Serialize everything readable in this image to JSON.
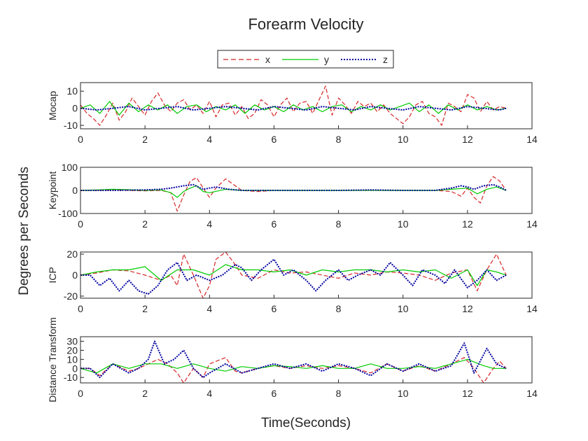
{
  "title": "Forearm Velocity",
  "xlabel": "Time(Seconds)",
  "ylabel": "Degrees per Seconds",
  "legend": {
    "placement": "top-center",
    "entries": [
      {
        "name": "x",
        "color": "#d62728",
        "style": "dashed"
      },
      {
        "name": "y",
        "color": "#00cc00",
        "style": "solid"
      },
      {
        "name": "z",
        "color": "#0000a0",
        "style": "dotted"
      }
    ]
  },
  "chart_data": [
    {
      "type": "line",
      "ylabel": "Mocap",
      "xlim": [
        0,
        14
      ],
      "ylim": [
        -12,
        15
      ],
      "xticks": [
        0,
        2,
        4,
        6,
        8,
        10,
        12,
        14
      ],
      "yticks": [
        -10,
        0,
        10
      ],
      "grid": false,
      "series": [
        {
          "name": "x",
          "x": [
            0,
            0.2,
            0.4,
            0.6,
            0.8,
            1.0,
            1.2,
            1.4,
            1.6,
            1.8,
            2.0,
            2.2,
            2.4,
            2.6,
            2.8,
            3.0,
            3.2,
            3.4,
            3.6,
            3.8,
            4.0,
            4.2,
            4.4,
            4.6,
            4.8,
            5.0,
            5.2,
            5.4,
            5.6,
            5.8,
            6.0,
            6.2,
            6.4,
            6.6,
            6.8,
            7.0,
            7.2,
            7.4,
            7.6,
            7.8,
            8.0,
            8.2,
            8.4,
            8.6,
            8.8,
            9.0,
            9.2,
            9.4,
            9.6,
            9.8,
            10.0,
            10.2,
            10.4,
            10.6,
            10.8,
            11.0,
            11.2,
            11.4,
            11.6,
            11.8,
            12.0,
            12.2,
            12.4,
            12.6,
            12.8,
            13.0,
            13.2
          ],
          "y": [
            2,
            -3,
            -6,
            -10,
            -4,
            3,
            -7,
            -2,
            6,
            1,
            -4,
            4,
            9,
            2,
            -2,
            3,
            5,
            -1,
            2,
            -3,
            4,
            -5,
            2,
            3,
            -4,
            1,
            -6,
            -3,
            5,
            2,
            -5,
            2,
            6,
            -2,
            3,
            4,
            -3,
            5,
            13,
            -4,
            6,
            2,
            -3,
            4,
            1,
            3,
            -2,
            2,
            -3,
            -6,
            -9,
            -5,
            2,
            4,
            -3,
            -5,
            -10,
            3,
            1,
            -2,
            8,
            6,
            -2,
            4,
            -1,
            1,
            0
          ]
        },
        {
          "name": "y",
          "x": [
            0,
            0.3,
            0.6,
            0.9,
            1.2,
            1.5,
            1.8,
            2.1,
            2.4,
            2.7,
            3.0,
            3.3,
            3.6,
            3.9,
            4.2,
            4.5,
            4.8,
            5.1,
            5.4,
            5.7,
            6.0,
            6.3,
            6.6,
            6.9,
            7.2,
            7.5,
            7.8,
            8.1,
            8.4,
            8.7,
            9.0,
            9.3,
            9.6,
            9.9,
            10.2,
            10.5,
            10.8,
            11.1,
            11.4,
            11.7,
            12.0,
            12.3,
            12.6,
            12.9,
            13.2
          ],
          "y": [
            0,
            2,
            -3,
            4,
            -4,
            3,
            -2,
            2,
            -1,
            2,
            -3,
            1,
            2,
            -2,
            1,
            -1,
            2,
            -3,
            2,
            -1,
            1,
            -2,
            2,
            -1,
            1,
            -2,
            1,
            2,
            -2,
            1,
            -1,
            2,
            -1,
            1,
            3,
            -2,
            2,
            -3,
            2,
            -1,
            2,
            -1,
            1,
            -1,
            0
          ]
        },
        {
          "name": "z",
          "x": [
            0,
            0.5,
            1.0,
            1.5,
            2.0,
            2.5,
            3.0,
            3.5,
            4.0,
            4.5,
            5.0,
            5.5,
            6.0,
            6.5,
            7.0,
            7.5,
            8.0,
            8.5,
            9.0,
            9.5,
            10.0,
            10.5,
            11.0,
            11.5,
            12.0,
            12.5,
            13.0,
            13.2
          ],
          "y": [
            0,
            -1,
            0,
            1,
            -1,
            0,
            1,
            -1,
            0,
            1,
            0,
            -1,
            1,
            0,
            -1,
            1,
            0,
            -1,
            1,
            0,
            -1,
            1,
            0,
            -1,
            1,
            0,
            -1,
            0
          ]
        }
      ]
    },
    {
      "type": "line",
      "ylabel": "Keypoint",
      "xlim": [
        0,
        14
      ],
      "ylim": [
        -100,
        100
      ],
      "xticks": [
        0,
        2,
        4,
        6,
        8,
        10,
        12,
        14
      ],
      "yticks": [
        -100,
        0,
        100
      ],
      "grid": false,
      "series": [
        {
          "name": "x",
          "x": [
            0,
            0.5,
            1.0,
            1.5,
            2.0,
            2.5,
            2.8,
            3.0,
            3.2,
            3.4,
            3.6,
            3.8,
            4.0,
            4.2,
            4.5,
            4.8,
            5.0,
            5.5,
            6.0,
            7.0,
            8.0,
            9.0,
            10.0,
            11.0,
            11.5,
            11.8,
            12.0,
            12.2,
            12.4,
            12.6,
            12.8,
            13.0,
            13.2
          ],
          "y": [
            0,
            0,
            2,
            0,
            -2,
            0,
            -10,
            -90,
            -20,
            40,
            55,
            10,
            -30,
            10,
            50,
            20,
            0,
            -5,
            0,
            0,
            0,
            0,
            0,
            0,
            -5,
            -25,
            10,
            -30,
            -55,
            20,
            60,
            40,
            0
          ]
        },
        {
          "name": "y",
          "x": [
            0,
            0.5,
            1.0,
            1.5,
            2.0,
            2.5,
            2.8,
            3.0,
            3.2,
            3.4,
            3.6,
            3.8,
            4.0,
            4.5,
            5.0,
            6.0,
            7.0,
            8.0,
            9.0,
            10.0,
            11.0,
            11.5,
            12.0,
            12.3,
            12.6,
            12.9,
            13.2
          ],
          "y": [
            0,
            2,
            5,
            3,
            0,
            2,
            -10,
            -30,
            -5,
            10,
            20,
            -5,
            -10,
            5,
            0,
            0,
            0,
            0,
            0,
            0,
            0,
            5,
            10,
            -15,
            5,
            15,
            0
          ]
        },
        {
          "name": "z",
          "x": [
            0,
            1.0,
            2.0,
            2.5,
            2.8,
            3.0,
            3.2,
            3.5,
            3.8,
            4.2,
            4.6,
            5.0,
            6.0,
            7.0,
            8.0,
            9.0,
            10.0,
            11.0,
            11.5,
            11.8,
            12.0,
            12.2,
            12.5,
            12.8,
            13.0,
            13.2
          ],
          "y": [
            0,
            0,
            2,
            5,
            10,
            15,
            20,
            25,
            5,
            15,
            5,
            0,
            0,
            0,
            0,
            2,
            0,
            0,
            10,
            20,
            15,
            5,
            20,
            25,
            15,
            0
          ]
        }
      ]
    },
    {
      "type": "line",
      "ylabel": "ICP",
      "xlim": [
        0,
        14
      ],
      "ylim": [
        -22,
        22
      ],
      "xticks": [
        0,
        2,
        4,
        6,
        8,
        10,
        12,
        14
      ],
      "yticks": [
        -20,
        0,
        20
      ],
      "grid": false,
      "series": [
        {
          "name": "x",
          "x": [
            0,
            0.5,
            1.0,
            1.5,
            2.0,
            2.5,
            2.8,
            3.0,
            3.2,
            3.5,
            3.8,
            4.0,
            4.2,
            4.5,
            4.8,
            5.0,
            5.5,
            6.0,
            6.5,
            7.0,
            7.5,
            8.0,
            8.5,
            9.0,
            9.5,
            10.0,
            10.5,
            11.0,
            11.5,
            12.0,
            12.3,
            12.6,
            12.9,
            13.2
          ],
          "y": [
            0,
            2,
            5,
            4,
            0,
            -5,
            0,
            -10,
            20,
            0,
            -22,
            -10,
            15,
            22,
            10,
            0,
            -3,
            5,
            2,
            3,
            0,
            -3,
            2,
            0,
            3,
            2,
            0,
            -5,
            2,
            5,
            -15,
            5,
            20,
            0
          ]
        },
        {
          "name": "y",
          "x": [
            0,
            0.5,
            1.0,
            1.5,
            2.0,
            2.5,
            3.0,
            3.5,
            4.0,
            4.5,
            5.0,
            5.5,
            6.0,
            6.5,
            7.0,
            7.5,
            8.0,
            8.5,
            9.0,
            9.5,
            10.0,
            10.5,
            11.0,
            11.5,
            12.0,
            12.3,
            12.6,
            12.9,
            13.2
          ],
          "y": [
            0,
            3,
            5,
            5,
            8,
            -5,
            5,
            5,
            0,
            10,
            5,
            5,
            3,
            5,
            0,
            5,
            3,
            5,
            5,
            3,
            5,
            3,
            5,
            -3,
            5,
            -10,
            5,
            3,
            0
          ]
        },
        {
          "name": "z",
          "x": [
            0,
            0.3,
            0.6,
            0.9,
            1.2,
            1.5,
            1.8,
            2.1,
            2.4,
            2.7,
            3.0,
            3.3,
            3.6,
            4.0,
            4.4,
            4.8,
            5.0,
            5.3,
            5.6,
            6.0,
            6.3,
            6.6,
            7.0,
            7.3,
            7.6,
            8.0,
            8.3,
            8.6,
            9.0,
            9.3,
            9.6,
            10.0,
            10.3,
            10.6,
            11.0,
            11.3,
            11.6,
            12.0,
            12.3,
            12.6,
            12.9,
            13.2
          ],
          "y": [
            0,
            0,
            -10,
            -3,
            -15,
            -5,
            -15,
            -18,
            -10,
            5,
            12,
            -5,
            0,
            -5,
            0,
            10,
            7,
            -5,
            5,
            15,
            0,
            5,
            -5,
            -15,
            -5,
            5,
            -5,
            0,
            5,
            0,
            12,
            0,
            -10,
            5,
            0,
            -8,
            5,
            -12,
            -5,
            5,
            -5,
            0
          ]
        }
      ]
    },
    {
      "type": "line",
      "ylabel": "Distance Transform",
      "xlim": [
        0,
        14
      ],
      "ylim": [
        -16,
        35
      ],
      "xticks": [
        0,
        2,
        4,
        6,
        8,
        10,
        12,
        14
      ],
      "yticks": [
        -10,
        0,
        10,
        20,
        30
      ],
      "grid": false,
      "series": [
        {
          "name": "x",
          "x": [
            0,
            0.3,
            0.6,
            1.0,
            1.5,
            1.8,
            2.1,
            2.4,
            2.7,
            3.0,
            3.2,
            3.5,
            3.8,
            4.0,
            4.5,
            4.8,
            5.0,
            5.5,
            6.0,
            6.5,
            7.0,
            7.5,
            8.0,
            8.5,
            9.0,
            9.5,
            10.0,
            10.5,
            11.0,
            11.5,
            11.9,
            12.2,
            12.5,
            12.8,
            13.0,
            13.2
          ],
          "y": [
            0,
            0,
            -8,
            5,
            -3,
            0,
            5,
            10,
            5,
            -5,
            -16,
            0,
            -10,
            5,
            12,
            -3,
            -5,
            0,
            3,
            0,
            3,
            0,
            3,
            0,
            -5,
            5,
            -3,
            3,
            -3,
            5,
            12,
            0,
            -16,
            0,
            8,
            0
          ]
        },
        {
          "name": "y",
          "x": [
            0,
            0.5,
            1.0,
            1.5,
            2.0,
            2.5,
            3.0,
            3.5,
            4.0,
            4.5,
            5.0,
            5.5,
            6.0,
            6.5,
            7.0,
            7.5,
            8.0,
            8.5,
            9.0,
            9.5,
            10.0,
            10.5,
            11.0,
            11.5,
            12.0,
            12.5,
            12.8,
            13.2
          ],
          "y": [
            0,
            -5,
            5,
            0,
            5,
            5,
            0,
            5,
            0,
            -3,
            2,
            0,
            3,
            2,
            0,
            3,
            0,
            0,
            5,
            0,
            0,
            2,
            0,
            5,
            10,
            3,
            0,
            0
          ]
        },
        {
          "name": "z",
          "x": [
            0,
            0.3,
            0.6,
            1.0,
            1.5,
            1.8,
            2.1,
            2.3,
            2.6,
            2.9,
            3.2,
            3.5,
            3.8,
            4.0,
            4.5,
            5.0,
            5.5,
            6.0,
            6.5,
            7.0,
            7.5,
            8.0,
            8.5,
            9.0,
            9.5,
            10.0,
            10.5,
            11.0,
            11.5,
            11.9,
            12.2,
            12.6,
            12.9,
            13.2
          ],
          "y": [
            0,
            0,
            -10,
            5,
            -5,
            0,
            10,
            30,
            5,
            10,
            20,
            0,
            -10,
            -5,
            5,
            -5,
            0,
            5,
            0,
            5,
            -3,
            5,
            0,
            -8,
            5,
            -3,
            5,
            -3,
            3,
            28,
            -5,
            22,
            5,
            0
          ]
        }
      ]
    }
  ]
}
